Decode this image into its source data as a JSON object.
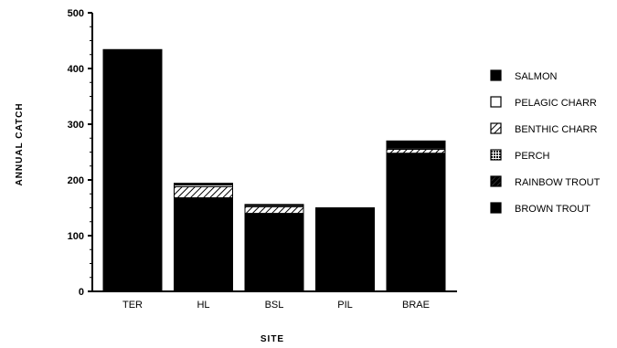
{
  "chart_data": {
    "type": "bar",
    "stacked": true,
    "title": "",
    "xlabel": "SITE",
    "ylabel": "ANNUAL CATCH",
    "ylim": [
      0,
      500
    ],
    "yticks": [
      "0",
      "100",
      "200",
      "300",
      "400",
      "500"
    ],
    "categories": [
      "TER",
      "HL",
      "BSL",
      "PIL",
      "BRAE"
    ],
    "series": [
      {
        "name": "BROWN TROUT",
        "values": [
          412,
          168,
          140,
          150,
          248
        ],
        "color": "#000000",
        "pattern": "solid"
      },
      {
        "name": "RAINBOW TROUT",
        "values": [
          0,
          0,
          0,
          0,
          0
        ],
        "color": "#111111",
        "pattern": "dark-hatch"
      },
      {
        "name": "PERCH",
        "values": [
          0,
          0,
          0,
          0,
          0
        ],
        "color": "#555555",
        "pattern": "crosshatch"
      },
      {
        "name": "BENTHIC CHARR",
        "values": [
          0,
          20,
          12,
          0,
          7
        ],
        "color": "#777777",
        "pattern": "diagonal"
      },
      {
        "name": "PELAGIC CHARR",
        "values": [
          0,
          3,
          2,
          0,
          2
        ],
        "color": "#ffffff",
        "pattern": "open"
      },
      {
        "name": "SALMON",
        "values": [
          22,
          3,
          2,
          0,
          13
        ],
        "color": "#000000",
        "pattern": "solid"
      }
    ],
    "legend_order": [
      "SALMON",
      "PELAGIC CHARR",
      "BENTHIC CHARR",
      "PERCH",
      "RAINBOW TROUT",
      "BROWN TROUT"
    ],
    "legend_position": "right",
    "grid": false
  }
}
